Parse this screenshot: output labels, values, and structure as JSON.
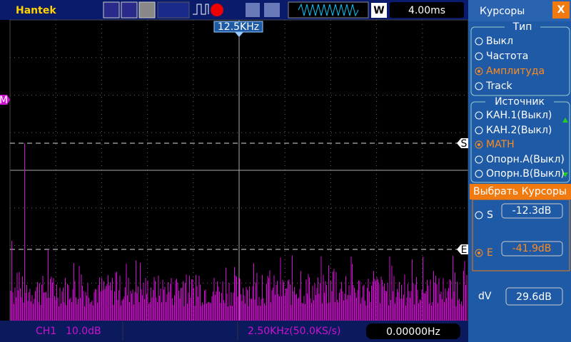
{
  "toolbar": {
    "brand": "Hantek",
    "timebase_mode": "W",
    "timebase": "4.00ms"
  },
  "screen": {
    "frequency_marker": "12.5KHz",
    "math_marker": "M",
    "cursor_s_marker": "S",
    "cursor_e_marker": "E"
  },
  "panel": {
    "title": "Курсоры",
    "close": "X",
    "type": {
      "heading": "Тип",
      "options": [
        "Выкл",
        "Частота",
        "Амплитуда",
        "Track"
      ],
      "selected": 2
    },
    "source": {
      "heading": "Источник",
      "options": [
        "КАН.1(Выкл)",
        "КАН.2(Выкл)",
        "MATH",
        "Опорн.A(Выкл)",
        "Опорн.B(Выкл)"
      ],
      "selected": 2
    },
    "select": {
      "label": "Выбрать  Курсоры",
      "cursors": [
        {
          "name": "S",
          "value": "-12.3dB"
        },
        {
          "name": "E",
          "value": "-41.9dB"
        }
      ],
      "selected": 1
    },
    "delta": {
      "name": "dV",
      "value": "29.6dB"
    }
  },
  "status": {
    "channel": "CH1",
    "scale": "10.0dB",
    "sample": "2.50KHz(50.0KS/s)",
    "frequency": "0.00000Hz"
  }
}
